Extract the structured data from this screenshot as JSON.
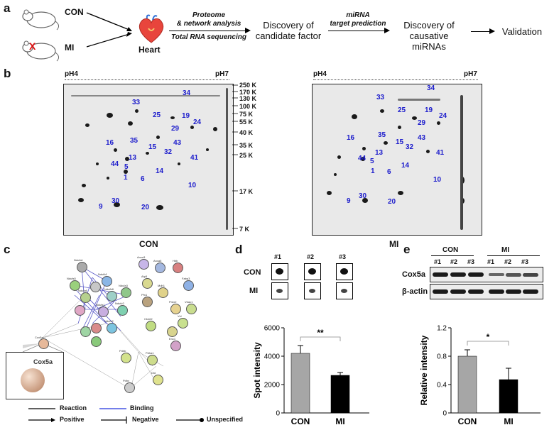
{
  "panel_a": {
    "label": "a",
    "groups": [
      "CON",
      "MI"
    ],
    "mi_mark": "X",
    "heart_label": "Heart",
    "step1": [
      "Proteome",
      "& network analysis",
      "Total RNA sequencing"
    ],
    "step2": "Discovery of candidate factor",
    "step3": [
      "miRNA",
      "target prediction"
    ],
    "step4": "Discovery of causative miRNAs",
    "step5": "Validation"
  },
  "panel_b": {
    "label": "b",
    "ph_left": "pH4",
    "ph_right": "pH7",
    "mw_markers": [
      "250 K",
      "170 K",
      "130 K",
      "100 K",
      "75 K",
      "55 K",
      "40 K",
      "35 K",
      "25 K",
      "17 K",
      "7 K"
    ],
    "con_label": "CON",
    "mi_label": "MI",
    "spot_numbers": [
      "34",
      "33",
      "25",
      "19",
      "24",
      "29",
      "35",
      "16",
      "15",
      "43",
      "32",
      "41",
      "13",
      "44",
      "5",
      "1",
      "6",
      "14",
      "10",
      "9",
      "30",
      "20"
    ]
  },
  "panel_c": {
    "label": "c",
    "zoom_label": "Cox5a",
    "nodes": [
      "Ndufa1",
      "Ndufb1",
      "Ndufs5",
      "Ndufb8",
      "Ndufa6",
      "Ndufa3",
      "Ndufv2",
      "Ndufs1",
      "Ndufs2",
      "Cox5a",
      "Anxa3",
      "Anxa5",
      "Atp5",
      "Hbb",
      "Fabp3",
      "Mdh1",
      "Prdx2",
      "Pfn1",
      "Vdac1",
      "Ckmt2",
      "Vcl",
      "Enc1",
      "Pdha1",
      "Pdhb",
      "Dld",
      "Pdhx"
    ],
    "legend": [
      "Reaction",
      "Binding",
      "Positive",
      "Negative",
      "Unspecified"
    ]
  },
  "panel_d": {
    "label": "d",
    "cols": [
      "#1",
      "#2",
      "#3"
    ],
    "rows": [
      "CON",
      "MI"
    ],
    "significance": "**"
  },
  "panel_e": {
    "label": "e",
    "groups": [
      "CON",
      "MI"
    ],
    "lanes": [
      "#1",
      "#2",
      "#3",
      "#1",
      "#2",
      "#3"
    ],
    "blots": [
      "Cox5a",
      "β-actin"
    ],
    "significance": "*"
  },
  "chart_data": [
    {
      "type": "bar",
      "title": "",
      "ylabel": "Spot intensity",
      "xlabel": "",
      "categories": [
        "CON",
        "MI"
      ],
      "values": [
        4200,
        2650
      ],
      "errors": [
        550,
        200
      ],
      "ylim": [
        0,
        6000
      ],
      "yticks": [
        "0",
        "2000",
        "4000",
        "6000"
      ],
      "colors": [
        "#a6a6a6",
        "#000000"
      ]
    },
    {
      "type": "bar",
      "title": "",
      "ylabel": "Relative intensity",
      "xlabel": "",
      "categories": [
        "CON",
        "MI"
      ],
      "values": [
        0.8,
        0.47
      ],
      "errors": [
        0.09,
        0.16
      ],
      "ylim": [
        0,
        1.2
      ],
      "yticks": [
        "0",
        "0.4",
        "0.8",
        "1.2"
      ],
      "colors": [
        "#a6a6a6",
        "#000000"
      ]
    }
  ]
}
